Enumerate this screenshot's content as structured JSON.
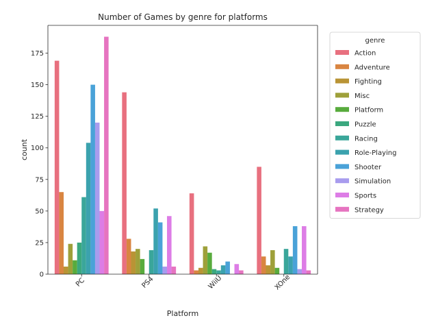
{
  "chart_data": {
    "type": "bar",
    "title": "Number of Games by genre for platforms",
    "xlabel": "Platform",
    "ylabel": "count",
    "categories": [
      "PC",
      "PS4",
      "WiiU",
      "XOne"
    ],
    "ylim": [
      0,
      197
    ],
    "yticks": [
      0,
      25,
      50,
      75,
      100,
      125,
      150,
      175
    ],
    "legend_title": "genre",
    "legend_position": "outside-right",
    "series": [
      {
        "name": "Action",
        "color": "#e8707f",
        "values": [
          169,
          144,
          64,
          85
        ]
      },
      {
        "name": "Adventure",
        "color": "#d98541",
        "values": [
          65,
          28,
          3,
          14
        ]
      },
      {
        "name": "Fighting",
        "color": "#b99435",
        "values": [
          6,
          18,
          5,
          7
        ]
      },
      {
        "name": "Misc",
        "color": "#9ea03a",
        "values": [
          24,
          20,
          22,
          19
        ]
      },
      {
        "name": "Platform",
        "color": "#58ab3d",
        "values": [
          11,
          12,
          17,
          5
        ]
      },
      {
        "name": "Puzzle",
        "color": "#3ba87f",
        "values": [
          25,
          0,
          4,
          0
        ]
      },
      {
        "name": "Racing",
        "color": "#3aa69a",
        "values": [
          61,
          19,
          3,
          20
        ]
      },
      {
        "name": "Role-Playing",
        "color": "#3ba2ae",
        "values": [
          104,
          52,
          7,
          14
        ]
      },
      {
        "name": "Shooter",
        "color": "#4aa2d8",
        "values": [
          150,
          41,
          10,
          38
        ]
      },
      {
        "name": "Simulation",
        "color": "#a89cee",
        "values": [
          120,
          6,
          0,
          4
        ]
      },
      {
        "name": "Sports",
        "color": "#dd7de6",
        "values": [
          50,
          46,
          8,
          38
        ]
      },
      {
        "name": "Strategy",
        "color": "#e674c0",
        "values": [
          188,
          6,
          3,
          3
        ]
      }
    ]
  }
}
